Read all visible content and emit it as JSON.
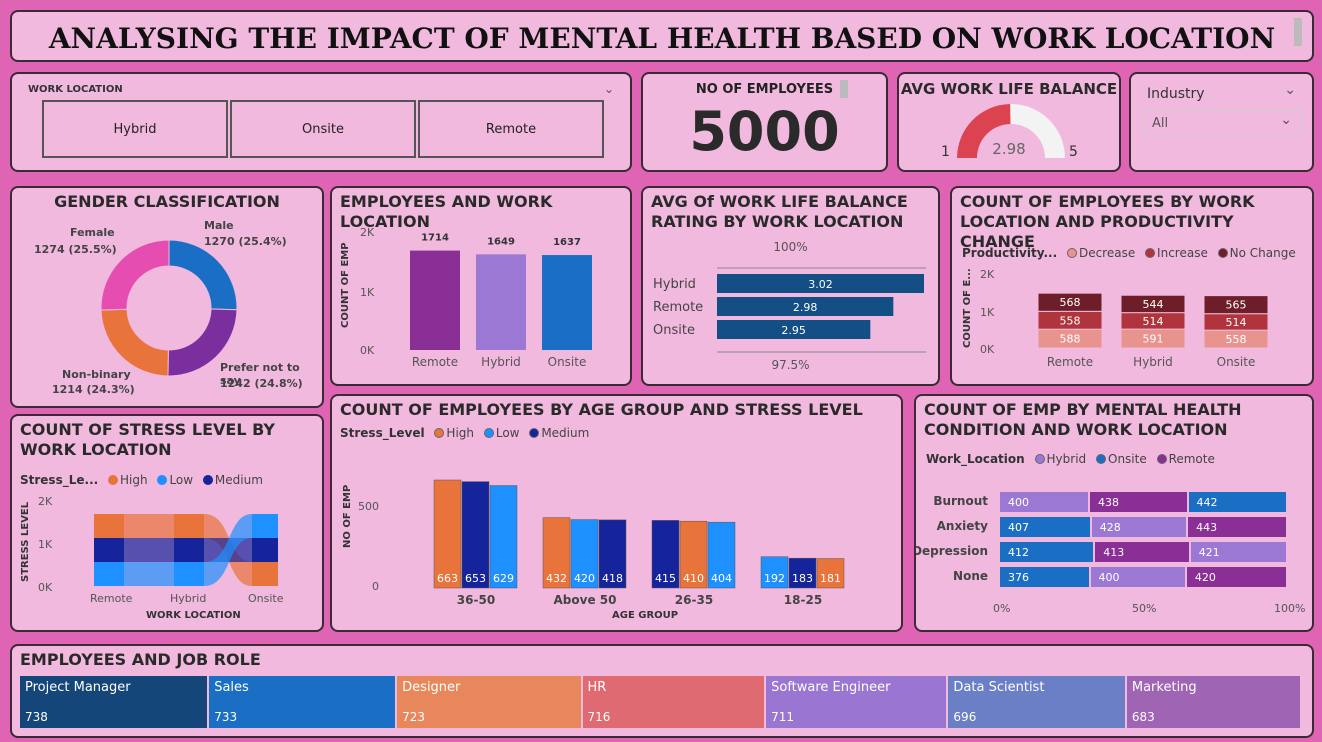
{
  "title": "ANALYSING THE IMPACT OF MENTAL HEALTH BASED ON WORK LOCATION",
  "slicer": {
    "label": "WORK LOCATION",
    "options": [
      "Hybrid",
      "Onsite",
      "Remote"
    ]
  },
  "kpi": {
    "label": "NO OF EMPLOYEES",
    "value": "5000"
  },
  "gauge": {
    "title": "AVG WORK LIFE BALANCE",
    "min": "1",
    "max": "5",
    "value": "2.98",
    "value_num": 2.98,
    "min_num": 1,
    "max_num": 5
  },
  "industry": {
    "label": "Industry",
    "value": "All"
  },
  "gender": {
    "title": "GENDER CLASSIFICATION",
    "slices": [
      {
        "name": "Male",
        "label": "1270 (25.4%)",
        "value": 1270,
        "color": "#1a6fc4"
      },
      {
        "name": "Prefer not to say",
        "label": "1242 (24.8%)",
        "value": 1242,
        "color": "#7b2f9e"
      },
      {
        "name": "Non-binary",
        "label": "1214 (24.3%)",
        "value": 1214,
        "color": "#e8743b"
      },
      {
        "name": "Female",
        "label": "1274 (25.5%)",
        "value": 1274,
        "color": "#e54db0"
      }
    ]
  },
  "emp_loc": {
    "title": "EMPLOYEES AND WORK LOCATION",
    "ylabel": "COUNT OF EMP",
    "ticks": [
      "2K",
      "1K",
      "0K"
    ],
    "bars": [
      {
        "cat": "Remote",
        "value": 1714,
        "label": "1714",
        "color": "#8a2f95"
      },
      {
        "cat": "Hybrid",
        "value": 1649,
        "label": "1649",
        "color": "#9b78d3"
      },
      {
        "cat": "Onsite",
        "value": 1637,
        "label": "1637",
        "color": "#1a6fc4"
      }
    ]
  },
  "wlb_loc": {
    "title": "AVG Of WORK LIFE BALANCE RATING BY WORK LOCATION",
    "top": "100%",
    "bottom": "97.5%",
    "rows": [
      {
        "cat": "Hybrid",
        "label": "3.02",
        "value": 3.02
      },
      {
        "cat": "Remote",
        "label": "2.98",
        "value": 2.98
      },
      {
        "cat": "Onsite",
        "label": "2.95",
        "value": 2.95
      }
    ]
  },
  "prod": {
    "title": "COUNT OF EMPLOYEES BY WORK LOCATION AND PRODUCTIVITY CHANGE",
    "legend_title": "Productivity...",
    "legend": [
      {
        "name": "Decrease",
        "color": "#e8938e"
      },
      {
        "name": "Increase",
        "color": "#b0343c"
      },
      {
        "name": "No Change",
        "color": "#6e1e28"
      }
    ],
    "ylabel": "COUNT OF E...",
    "ticks": [
      "2K",
      "1K",
      "0K"
    ],
    "cats": [
      {
        "cat": "Remote",
        "decrease": 588,
        "increase": 558,
        "nochange": 568
      },
      {
        "cat": "Hybrid",
        "decrease": 591,
        "increase": 514,
        "nochange": 544
      },
      {
        "cat": "Onsite",
        "decrease": 558,
        "increase": 514,
        "nochange": 565
      }
    ]
  },
  "stress_loc": {
    "title": "COUNT OF STRESS LEVEL BY WORK LOCATION",
    "legend_title": "Stress_Le...",
    "legend": [
      {
        "name": "High",
        "color": "#e8743b"
      },
      {
        "name": "Low",
        "color": "#1e90ff"
      },
      {
        "name": "Medium",
        "color": "#15249a"
      }
    ],
    "ylabel": "STRESS LEVEL",
    "xlabel": "WORK LOCATION",
    "ticks": [
      "2K",
      "1K",
      "0K"
    ],
    "cats": [
      "Remote",
      "Hybrid",
      "Onsite"
    ]
  },
  "age_stress": {
    "title": "COUNT OF EMPLOYEES BY AGE GROUP AND STRESS LEVEL",
    "legend_title": "Stress_Level",
    "legend": [
      {
        "name": "High",
        "color": "#e8743b"
      },
      {
        "name": "Low",
        "color": "#1e90ff"
      },
      {
        "name": "Medium",
        "color": "#15249a"
      }
    ],
    "ylabel": "NO OF EMP",
    "xlabel": "AGE GROUP",
    "ticks": [
      "500",
      "0"
    ],
    "groups": [
      {
        "cat": "36-50",
        "bars": [
          {
            "v": 663,
            "c": "#e8743b"
          },
          {
            "v": 653,
            "c": "#15249a"
          },
          {
            "v": 629,
            "c": "#1e90ff"
          }
        ]
      },
      {
        "cat": "Above 50",
        "bars": [
          {
            "v": 432,
            "c": "#e8743b"
          },
          {
            "v": 420,
            "c": "#1e90ff"
          },
          {
            "v": 418,
            "c": "#15249a"
          }
        ]
      },
      {
        "cat": "26-35",
        "bars": [
          {
            "v": 415,
            "c": "#15249a"
          },
          {
            "v": 410,
            "c": "#e8743b"
          },
          {
            "v": 404,
            "c": "#1e90ff"
          }
        ]
      },
      {
        "cat": "18-25",
        "bars": [
          {
            "v": 192,
            "c": "#1e90ff"
          },
          {
            "v": 183,
            "c": "#15249a"
          },
          {
            "v": 181,
            "c": "#e8743b"
          }
        ]
      }
    ]
  },
  "mh": {
    "title": "COUNT OF EMP BY MENTAL HEALTH CONDITION AND WORK LOCATION",
    "legend_title": "Work_Location",
    "legend": [
      {
        "name": "Hybrid",
        "color": "#9b78d3"
      },
      {
        "name": "Onsite",
        "color": "#1a6fc4"
      },
      {
        "name": "Remote",
        "color": "#8a2f95"
      }
    ],
    "ticks": [
      "0%",
      "50%",
      "100%"
    ],
    "rows": [
      {
        "cat": "Burnout",
        "segs": [
          {
            "v": 400,
            "c": "#9b78d3"
          },
          {
            "v": 438,
            "c": "#8a2f95"
          },
          {
            "v": 442,
            "c": "#1a6fc4"
          }
        ]
      },
      {
        "cat": "Anxiety",
        "segs": [
          {
            "v": 407,
            "c": "#1a6fc4"
          },
          {
            "v": 428,
            "c": "#9b78d3"
          },
          {
            "v": 443,
            "c": "#8a2f95"
          }
        ]
      },
      {
        "cat": "Depression",
        "segs": [
          {
            "v": 412,
            "c": "#1a6fc4"
          },
          {
            "v": 413,
            "c": "#8a2f95"
          },
          {
            "v": 421,
            "c": "#9b78d3"
          }
        ]
      },
      {
        "cat": "None",
        "segs": [
          {
            "v": 376,
            "c": "#1a6fc4"
          },
          {
            "v": 400,
            "c": "#9b78d3"
          },
          {
            "v": 420,
            "c": "#8a2f95"
          }
        ]
      }
    ]
  },
  "jobs": {
    "title": "EMPLOYEES AND JOB ROLE",
    "tiles": [
      {
        "name": "Project Manager",
        "value": "738",
        "color": "#14467a"
      },
      {
        "name": "Sales",
        "value": "733",
        "color": "#1a6fc4"
      },
      {
        "name": "Designer",
        "value": "723",
        "color": "#e8875b"
      },
      {
        "name": "HR",
        "value": "716",
        "color": "#df6a72"
      },
      {
        "name": "Software Engineer",
        "value": "711",
        "color": "#9a76d2"
      },
      {
        "name": "Data Scientist",
        "value": "696",
        "color": "#6a7fc6"
      },
      {
        "name": "Marketing",
        "value": "683",
        "color": "#a064b4"
      }
    ]
  }
}
